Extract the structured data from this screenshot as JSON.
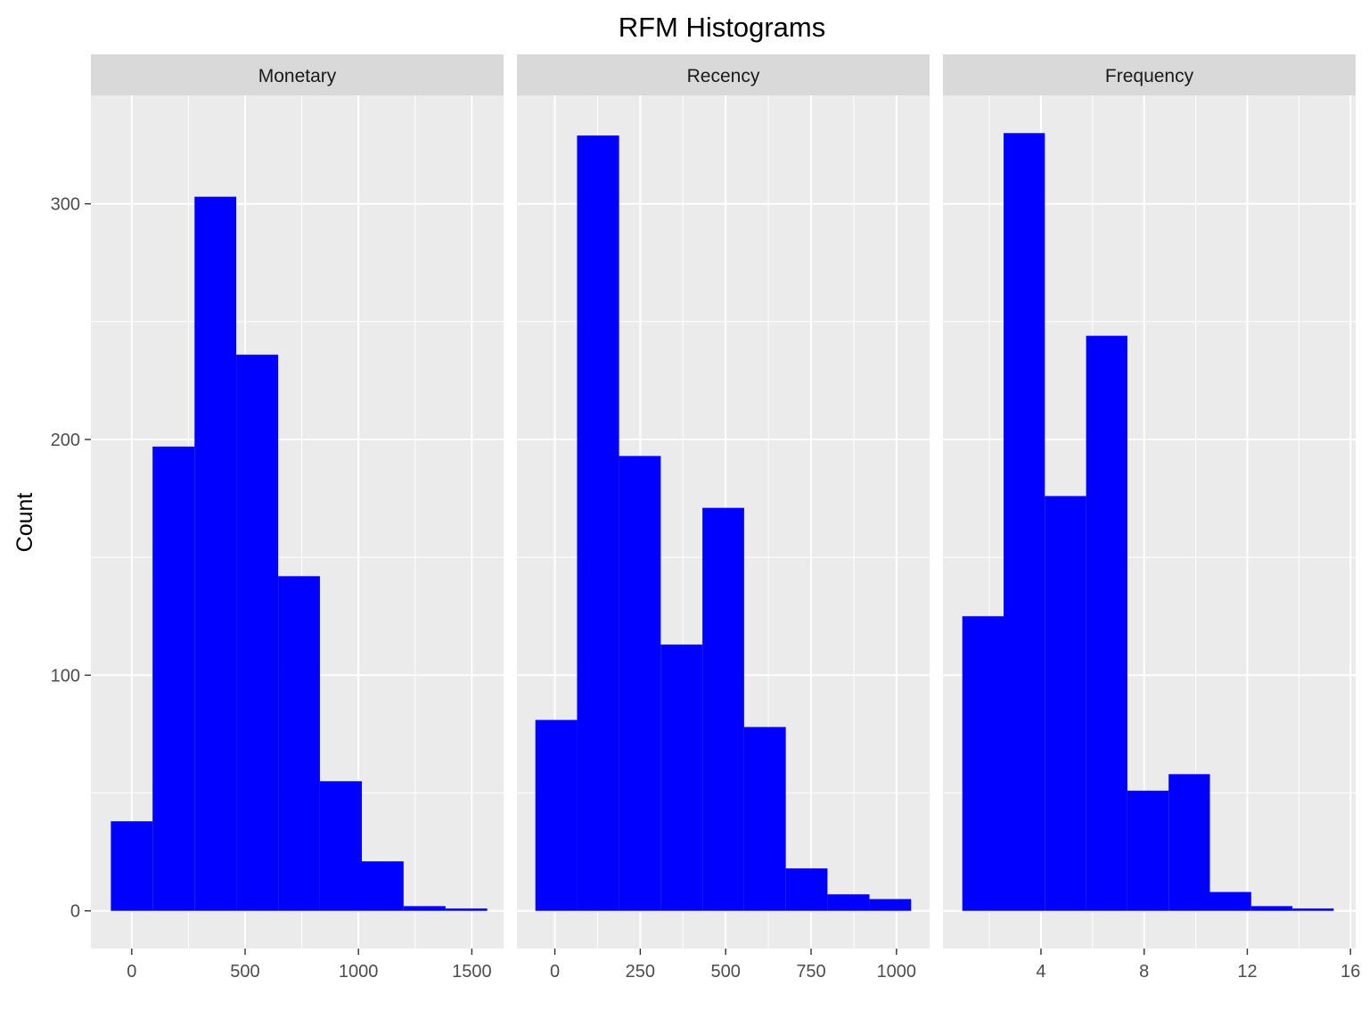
{
  "chart_data": {
    "type": "bar",
    "layout": "facets",
    "title": "RFM Histograms",
    "ylabel": "Count",
    "xlabel": "",
    "ylim": [
      -16,
      346
    ],
    "yticks": [
      0,
      100,
      200,
      300
    ],
    "yticks_minor": [
      50,
      150,
      250
    ],
    "grid": true,
    "bar_color": "#0000FF",
    "panel_bg": "#EBEBEB",
    "strip_bg": "#D9D9D9",
    "facets": [
      {
        "name": "Monetary",
        "xlim": [
          -180,
          1640
        ],
        "xticks": [
          0,
          500,
          1000,
          1500
        ],
        "xticks_minor": [
          250,
          750,
          1250
        ],
        "bins": [
          {
            "x0": -92,
            "x1": 92,
            "count": 38
          },
          {
            "x0": 92,
            "x1": 277,
            "count": 197
          },
          {
            "x0": 277,
            "x1": 461,
            "count": 303
          },
          {
            "x0": 461,
            "x1": 646,
            "count": 236
          },
          {
            "x0": 646,
            "x1": 830,
            "count": 142
          },
          {
            "x0": 830,
            "x1": 1015,
            "count": 55
          },
          {
            "x0": 1015,
            "x1": 1199,
            "count": 21
          },
          {
            "x0": 1199,
            "x1": 1384,
            "count": 2
          },
          {
            "x0": 1384,
            "x1": 1568,
            "count": 1
          }
        ]
      },
      {
        "name": "Recency",
        "xlim": [
          -111,
          1097
        ],
        "xticks": [
          0,
          250,
          500,
          750,
          1000
        ],
        "xticks_minor": [
          125,
          375,
          625,
          875
        ],
        "bins": [
          {
            "x0": -57,
            "x1": 65,
            "count": 81
          },
          {
            "x0": 65,
            "x1": 188,
            "count": 329
          },
          {
            "x0": 188,
            "x1": 310,
            "count": 193
          },
          {
            "x0": 310,
            "x1": 432,
            "count": 113
          },
          {
            "x0": 432,
            "x1": 554,
            "count": 171
          },
          {
            "x0": 554,
            "x1": 676,
            "count": 78
          },
          {
            "x0": 676,
            "x1": 798,
            "count": 18
          },
          {
            "x0": 798,
            "x1": 921,
            "count": 7
          },
          {
            "x0": 921,
            "x1": 1043,
            "count": 5
          }
        ]
      },
      {
        "name": "Frequency",
        "xlim": [
          0.2,
          16.2
        ],
        "xticks": [
          4,
          8,
          12,
          16
        ],
        "xticks_minor": [
          2,
          6,
          10,
          14
        ],
        "bins": [
          {
            "x0": 0.95,
            "x1": 2.55,
            "count": 125
          },
          {
            "x0": 2.55,
            "x1": 4.15,
            "count": 330
          },
          {
            "x0": 4.15,
            "x1": 5.75,
            "count": 176
          },
          {
            "x0": 5.75,
            "x1": 7.35,
            "count": 244
          },
          {
            "x0": 7.35,
            "x1": 8.95,
            "count": 51
          },
          {
            "x0": 8.95,
            "x1": 10.55,
            "count": 58
          },
          {
            "x0": 10.55,
            "x1": 12.15,
            "count": 8
          },
          {
            "x0": 12.15,
            "x1": 13.75,
            "count": 2
          },
          {
            "x0": 13.75,
            "x1": 15.35,
            "count": 1
          }
        ]
      }
    ]
  }
}
